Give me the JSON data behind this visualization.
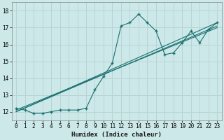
{
  "xlabel": "Humidex (Indice chaleur)",
  "ylabel": "",
  "background_color": "#cce8e8",
  "grid_color": "#b8d4d4",
  "line_color": "#1a7070",
  "xlim": [
    -0.5,
    23.5
  ],
  "ylim": [
    11.5,
    18.5
  ],
  "xticks": [
    0,
    1,
    2,
    3,
    4,
    5,
    6,
    7,
    8,
    9,
    10,
    11,
    12,
    13,
    14,
    15,
    16,
    17,
    18,
    19,
    20,
    21,
    22,
    23
  ],
  "yticks": [
    12,
    13,
    14,
    15,
    16,
    17,
    18
  ],
  "series1_x": [
    0,
    1,
    2,
    3,
    4,
    5,
    6,
    7,
    8,
    9,
    10,
    11,
    12,
    13,
    14,
    15,
    16,
    17,
    18,
    19,
    20,
    21,
    22,
    23
  ],
  "series1_y": [
    12.2,
    12.1,
    11.9,
    11.9,
    12.0,
    12.1,
    12.1,
    12.1,
    12.2,
    13.3,
    14.1,
    14.9,
    17.1,
    17.3,
    17.8,
    17.3,
    16.8,
    15.4,
    15.5,
    16.1,
    16.8,
    16.1,
    16.9,
    17.3
  ],
  "series2_x": [
    0,
    23
  ],
  "series2_y": [
    12.0,
    17.3
  ],
  "series3_x": [
    0,
    23
  ],
  "series3_y": [
    12.0,
    17.1
  ],
  "series4_x": [
    0,
    23
  ],
  "series4_y": [
    12.1,
    17.0
  ]
}
